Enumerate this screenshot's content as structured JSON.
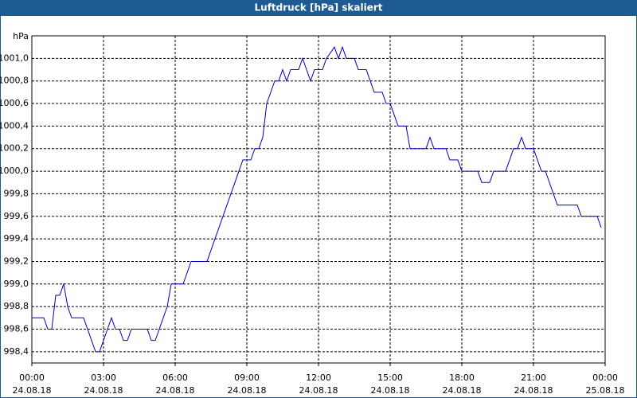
{
  "chart_data": {
    "type": "line",
    "title": "Luftdruck [hPa] skaliert",
    "y_unit": "hPa",
    "grid": true,
    "ylim": [
      998.3,
      1001.2
    ],
    "yticks": [
      {
        "value": 998.4,
        "label": "998,4"
      },
      {
        "value": 998.6,
        "label": "998,6"
      },
      {
        "value": 998.8,
        "label": "998,8"
      },
      {
        "value": 999.0,
        "label": "999,0"
      },
      {
        "value": 999.2,
        "label": "999,2"
      },
      {
        "value": 999.4,
        "label": "999,4"
      },
      {
        "value": 999.6,
        "label": "999,6"
      },
      {
        "value": 999.8,
        "label": "999,8"
      },
      {
        "value": 1000.0,
        "label": "1000,0"
      },
      {
        "value": 1000.2,
        "label": "1000,2"
      },
      {
        "value": 1000.4,
        "label": "1000,4"
      },
      {
        "value": 1000.6,
        "label": "1000,6"
      },
      {
        "value": 1000.8,
        "label": "1000,8"
      },
      {
        "value": 1001.0,
        "label": "1001,0"
      }
    ],
    "xlim": [
      "2018-08-24T00:00",
      "2018-08-25T00:00"
    ],
    "xticks": [
      {
        "value": "2018-08-24T00:00",
        "label": [
          "00:00",
          "24.08.18"
        ]
      },
      {
        "value": "2018-08-24T03:00",
        "label": [
          "03:00",
          "24.08.18"
        ]
      },
      {
        "value": "2018-08-24T06:00",
        "label": [
          "06:00",
          "24.08.18"
        ]
      },
      {
        "value": "2018-08-24T09:00",
        "label": [
          "09:00",
          "24.08.18"
        ]
      },
      {
        "value": "2018-08-24T12:00",
        "label": [
          "12:00",
          "24.08.18"
        ]
      },
      {
        "value": "2018-08-24T15:00",
        "label": [
          "15:00",
          "24.08.18"
        ]
      },
      {
        "value": "2018-08-24T18:00",
        "label": [
          "18:00",
          "24.08.18"
        ]
      },
      {
        "value": "2018-08-24T21:00",
        "label": [
          "21:00",
          "24.08.18"
        ]
      },
      {
        "value": "2018-08-25T00:00",
        "label": [
          "00:00",
          "25.08.18"
        ]
      }
    ],
    "x": [
      "2018-08-24T00:00",
      "2018-08-24T00:30",
      "2018-08-24T00:40",
      "2018-08-24T00:50",
      "2018-08-24T01:00",
      "2018-08-24T01:10",
      "2018-08-24T01:20",
      "2018-08-24T01:30",
      "2018-08-24T01:40",
      "2018-08-24T02:10",
      "2018-08-24T02:20",
      "2018-08-24T02:30",
      "2018-08-24T02:40",
      "2018-08-24T02:50",
      "2018-08-24T03:00",
      "2018-08-24T03:10",
      "2018-08-24T03:20",
      "2018-08-24T03:30",
      "2018-08-24T03:40",
      "2018-08-24T03:50",
      "2018-08-24T04:00",
      "2018-08-24T04:10",
      "2018-08-24T04:50",
      "2018-08-24T05:00",
      "2018-08-24T05:10",
      "2018-08-24T05:20",
      "2018-08-24T05:30",
      "2018-08-24T05:40",
      "2018-08-24T05:50",
      "2018-08-24T06:20",
      "2018-08-24T06:30",
      "2018-08-24T06:40",
      "2018-08-24T07:20",
      "2018-08-24T08:50",
      "2018-08-24T09:10",
      "2018-08-24T09:20",
      "2018-08-24T09:30",
      "2018-08-24T09:40",
      "2018-08-24T09:50",
      "2018-08-24T10:00",
      "2018-08-24T10:10",
      "2018-08-24T10:20",
      "2018-08-24T10:30",
      "2018-08-24T10:40",
      "2018-08-24T10:50",
      "2018-08-24T11:10",
      "2018-08-24T11:20",
      "2018-08-24T11:30",
      "2018-08-24T11:40",
      "2018-08-24T11:50",
      "2018-08-24T12:10",
      "2018-08-24T12:20",
      "2018-08-24T12:40",
      "2018-08-24T12:50",
      "2018-08-24T13:00",
      "2018-08-24T13:10",
      "2018-08-24T13:30",
      "2018-08-24T13:40",
      "2018-08-24T14:00",
      "2018-08-24T14:10",
      "2018-08-24T14:20",
      "2018-08-24T14:40",
      "2018-08-24T14:50",
      "2018-08-24T15:00",
      "2018-08-24T15:10",
      "2018-08-24T15:20",
      "2018-08-24T15:40",
      "2018-08-24T15:50",
      "2018-08-24T16:30",
      "2018-08-24T16:40",
      "2018-08-24T16:50",
      "2018-08-24T17:20",
      "2018-08-24T17:30",
      "2018-08-24T17:50",
      "2018-08-24T18:00",
      "2018-08-24T18:40",
      "2018-08-24T18:50",
      "2018-08-24T19:10",
      "2018-08-24T19:20",
      "2018-08-24T19:50",
      "2018-08-24T20:00",
      "2018-08-24T20:10",
      "2018-08-24T20:20",
      "2018-08-24T20:30",
      "2018-08-24T20:40",
      "2018-08-24T21:00",
      "2018-08-24T21:10",
      "2018-08-24T21:20",
      "2018-08-24T21:30",
      "2018-08-24T21:40",
      "2018-08-24T21:50",
      "2018-08-24T22:00",
      "2018-08-24T22:50",
      "2018-08-24T23:00",
      "2018-08-24T23:40",
      "2018-08-24T23:50"
    ],
    "series": [
      {
        "name": "Luftdruck",
        "color": "#0000c0",
        "values": [
          998.7,
          998.7,
          998.6,
          998.6,
          998.9,
          998.9,
          999.0,
          998.8,
          998.7,
          998.7,
          998.6,
          998.5,
          998.4,
          998.4,
          998.5,
          998.6,
          998.7,
          998.6,
          998.6,
          998.5,
          998.5,
          998.6,
          998.6,
          998.5,
          998.5,
          998.6,
          998.7,
          998.8,
          999.0,
          999.0,
          999.1,
          999.2,
          999.2,
          1000.1,
          1000.1,
          1000.2,
          1000.2,
          1000.3,
          1000.6,
          1000.7,
          1000.8,
          1000.8,
          1000.9,
          1000.8,
          1000.9,
          1000.9,
          1001.0,
          1000.9,
          1000.8,
          1000.9,
          1000.9,
          1001.0,
          1001.1,
          1001.0,
          1001.1,
          1001.0,
          1001.0,
          1000.9,
          1000.9,
          1000.8,
          1000.7,
          1000.7,
          1000.6,
          1000.6,
          1000.5,
          1000.4,
          1000.4,
          1000.2,
          1000.2,
          1000.3,
          1000.2,
          1000.2,
          1000.1,
          1000.1,
          1000.0,
          1000.0,
          999.9,
          999.9,
          1000.0,
          1000.0,
          1000.1,
          1000.2,
          1000.2,
          1000.3,
          1000.2,
          1000.2,
          1000.1,
          1000.0,
          1000.0,
          999.9,
          999.8,
          999.7,
          999.7,
          999.6,
          999.6,
          999.5
        ]
      }
    ]
  }
}
